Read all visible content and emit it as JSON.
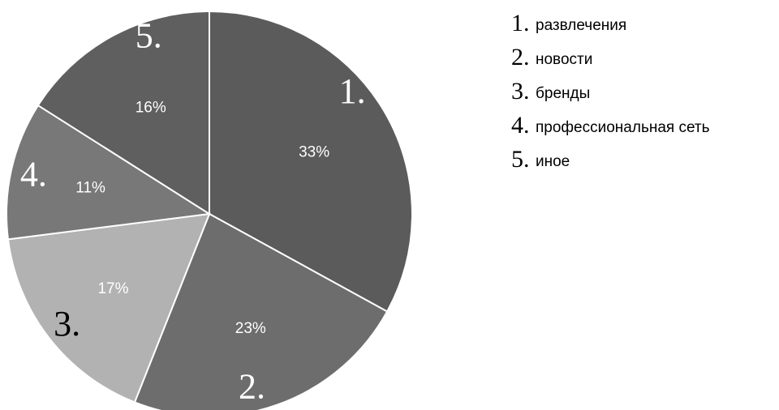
{
  "chart_data": {
    "type": "pie",
    "slices": [
      {
        "number": "1.",
        "label": "развлечения",
        "value": 33,
        "value_label": "33%",
        "color": "#5b5b5b",
        "number_color": "#ffffff"
      },
      {
        "number": "2.",
        "label": "новости",
        "value": 23,
        "value_label": "23%",
        "color": "#6d6d6d",
        "number_color": "#ffffff"
      },
      {
        "number": "3.",
        "label": "бренды",
        "value": 17,
        "value_label": "17%",
        "color": "#b2b2b2",
        "number_color": "#000000"
      },
      {
        "number": "4.",
        "label": "профессиональная сеть",
        "value": 11,
        "value_label": "11%",
        "color": "#787878",
        "number_color": "#ffffff"
      },
      {
        "number": "5.",
        "label": "иное",
        "value": 16,
        "value_label": "16%",
        "color": "#5f5f5f",
        "number_color": "#ffffff"
      }
    ],
    "start": "12 o'clock",
    "direction": "clockwise",
    "legend_position": "top-right"
  }
}
